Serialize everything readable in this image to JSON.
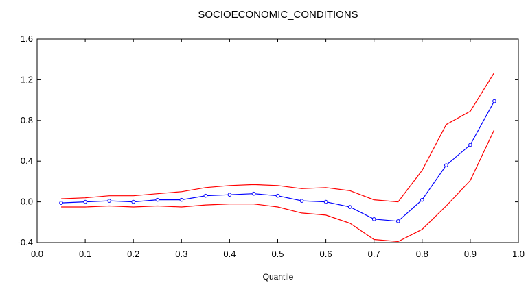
{
  "chart_data": {
    "type": "line",
    "title": "SOCIOECONOMIC_CONDITIONS",
    "xlabel": "Quantile",
    "ylabel": "",
    "xlim": [
      0.0,
      1.0
    ],
    "ylim": [
      -0.4,
      1.6
    ],
    "x_ticks": [
      "0.0",
      "0.1",
      "0.2",
      "0.3",
      "0.4",
      "0.5",
      "0.6",
      "0.7",
      "0.8",
      "0.9",
      "1.0"
    ],
    "y_ticks": [
      "1.6",
      "1.2",
      "0.8",
      "0.4",
      "0.0",
      "-0.4"
    ],
    "grid": false,
    "legend": "none",
    "colors": {
      "estimate": "#0000ff",
      "bounds": "#ff0000"
    },
    "x": [
      0.05,
      0.1,
      0.15,
      0.2,
      0.25,
      0.3,
      0.35,
      0.4,
      0.45,
      0.5,
      0.55,
      0.6,
      0.65,
      0.7,
      0.75,
      0.8,
      0.85,
      0.9,
      0.95
    ],
    "series": [
      {
        "role": "upper",
        "values": [
          0.03,
          0.04,
          0.06,
          0.06,
          0.08,
          0.1,
          0.14,
          0.16,
          0.17,
          0.16,
          0.13,
          0.14,
          0.11,
          0.02,
          0.0,
          0.31,
          0.76,
          0.89,
          1.27
        ]
      },
      {
        "role": "estimate",
        "values": [
          -0.01,
          0.0,
          0.01,
          0.0,
          0.02,
          0.02,
          0.06,
          0.07,
          0.08,
          0.06,
          0.01,
          0.0,
          -0.05,
          -0.17,
          -0.19,
          0.02,
          0.36,
          0.56,
          0.99
        ]
      },
      {
        "role": "lower",
        "values": [
          -0.05,
          -0.05,
          -0.04,
          -0.05,
          -0.04,
          -0.05,
          -0.03,
          -0.02,
          -0.02,
          -0.05,
          -0.11,
          -0.13,
          -0.21,
          -0.37,
          -0.39,
          -0.27,
          -0.04,
          0.21,
          0.71
        ]
      }
    ]
  }
}
